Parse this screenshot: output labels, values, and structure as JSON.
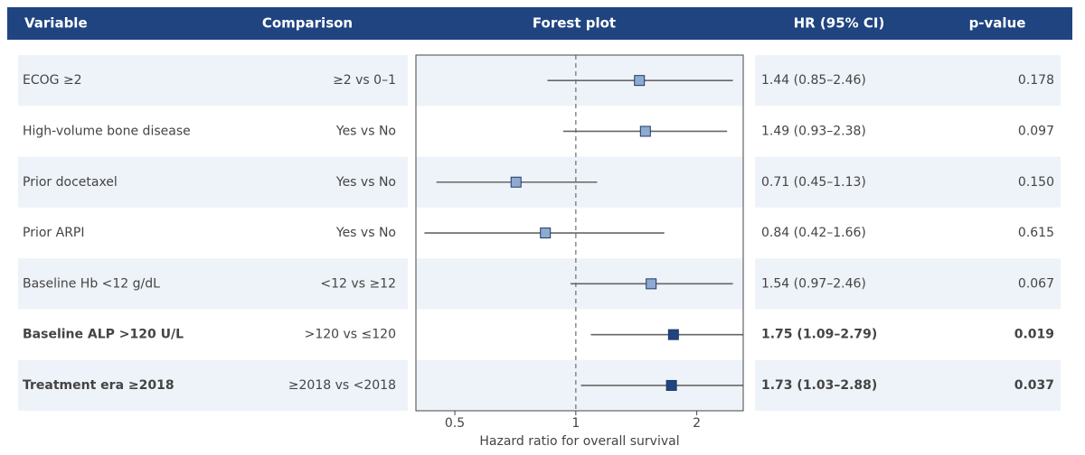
{
  "chart_data": {
    "type": "forest",
    "headers": [
      "Variable",
      "Comparison",
      "Forest plot",
      "HR (95% CI)",
      "p-value"
    ],
    "x_label": "Hazard ratio for overall survival",
    "x_log": true,
    "xlim": [
      0.4,
      2.61
    ],
    "xticks": [
      0.5,
      1,
      2
    ],
    "ref_line": 1,
    "categories": [
      "ECOG ≥2",
      "High-volume bone disease",
      "Prior docetaxel",
      "Prior ARPI",
      "Baseline Hb <12 g/dL",
      "Baseline ALP >120 U/L",
      "Treatment era ≥2018"
    ],
    "comparisons": [
      "≥2 vs 0–1",
      "Yes vs No",
      "Yes vs No",
      "Yes vs No",
      "<12 vs ≥12",
      ">120 vs ≤120",
      "≥2018 vs <2018"
    ],
    "values": [
      1.44,
      1.49,
      0.71,
      0.84,
      1.54,
      1.75,
      1.73
    ],
    "lower": [
      0.85,
      0.93,
      0.45,
      0.42,
      0.97,
      1.09,
      1.03
    ],
    "upper": [
      2.46,
      2.38,
      1.13,
      1.66,
      2.46,
      2.79,
      2.88
    ],
    "value_labels": [
      "1.44 (0.85–2.46)",
      "1.49 (0.93–2.38)",
      "0.71 (0.45–1.13)",
      "0.84 (0.42–1.66)",
      "1.54 (0.97–2.46)",
      "1.75 (1.09–2.79)",
      "1.73 (1.03–2.88)"
    ],
    "p_values": [
      "0.178",
      "0.097",
      "0.150",
      "0.615",
      "0.067",
      "0.019",
      "0.037"
    ],
    "bold": [
      false,
      false,
      false,
      false,
      false,
      true,
      true
    ],
    "marker_colors": [
      "#8eaad1",
      "#8eaad1",
      "#8eaad1",
      "#8eaad1",
      "#8eaad1",
      "#1f4480",
      "#1f4480"
    ],
    "header_color": "#1f4480",
    "band_color": "#eef3f9"
  }
}
